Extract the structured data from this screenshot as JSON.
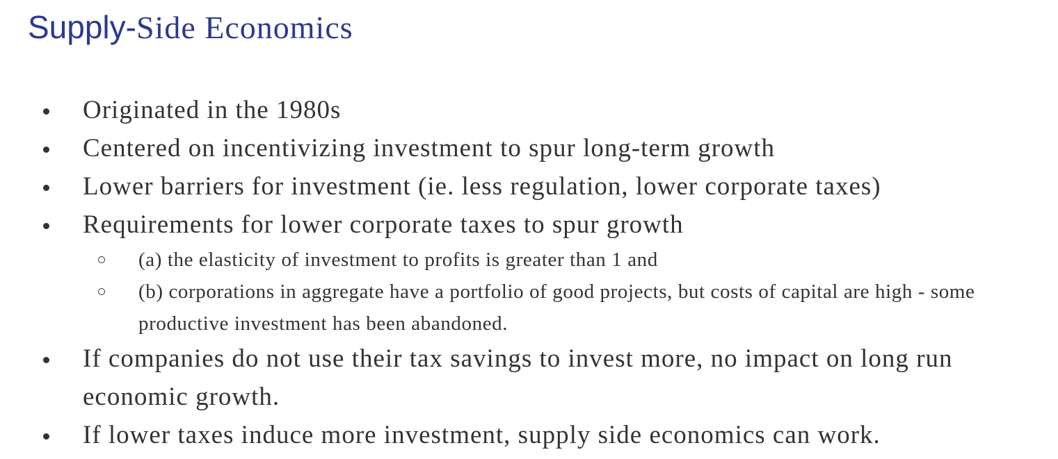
{
  "slide": {
    "title_part1": "Supply-",
    "title_part2": "Side Economics",
    "bullets": [
      "Originated in the 1980s",
      "Centered on incentivizing investment to spur long-term growth",
      "Lower barriers for investment (ie. less regulation, lower corporate taxes)",
      "Requirements for lower corporate taxes to spur growth"
    ],
    "sub_bullets": [
      "(a) the elasticity of investment to profits is greater than 1 and",
      "(b) corporations in aggregate have a portfolio of good projects, but costs of capital are high - some productive investment has been abandoned."
    ],
    "closing_bullets": [
      "If companies do not use their tax savings to invest more, no impact on long run economic growth.",
      "If lower taxes induce more investment, supply side economics can work."
    ]
  }
}
